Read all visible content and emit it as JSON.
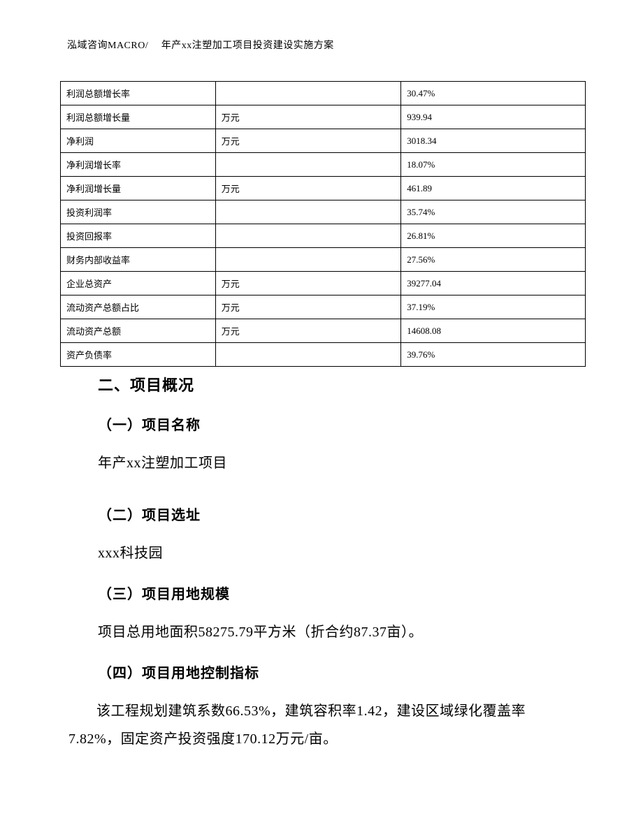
{
  "header": {
    "text": "泓域咨询MACRO/　 年产xx注塑加工项目投资建设实施方案"
  },
  "table": {
    "rows": [
      {
        "c1": "利润总额增长率",
        "c2": "",
        "c3": "30.47%"
      },
      {
        "c1": "利润总额增长量",
        "c2": "万元",
        "c3": "939.94"
      },
      {
        "c1": "净利润",
        "c2": "万元",
        "c3": "3018.34"
      },
      {
        "c1": "净利润增长率",
        "c2": "",
        "c3": "18.07%"
      },
      {
        "c1": "净利润增长量",
        "c2": "万元",
        "c3": "461.89"
      },
      {
        "c1": "投资利润率",
        "c2": "",
        "c3": "35.74%"
      },
      {
        "c1": "投资回报率",
        "c2": "",
        "c3": "26.81%"
      },
      {
        "c1": "财务内部收益率",
        "c2": "",
        "c3": "27.56%"
      },
      {
        "c1": "企业总资产",
        "c2": "万元",
        "c3": "39277.04"
      },
      {
        "c1": "流动资产总额占比",
        "c2": "万元",
        "c3": "37.19%"
      },
      {
        "c1": "流动资产总额",
        "c2": "万元",
        "c3": "14608.08"
      },
      {
        "c1": "资产负债率",
        "c2": "",
        "c3": "39.76%"
      }
    ]
  },
  "section2": {
    "title": "二、项目概况",
    "sub1": {
      "heading": "（一）项目名称",
      "text": "年产xx注塑加工项目"
    },
    "sub2": {
      "heading": "（二）项目选址",
      "text": "xxx科技园"
    },
    "sub3": {
      "heading": "（三）项目用地规模",
      "text": "项目总用地面积58275.79平方米（折合约87.37亩）。"
    },
    "sub4": {
      "heading": "（四）项目用地控制指标",
      "text": "该工程规划建筑系数66.53%，建筑容积率1.42，建设区域绿化覆盖率7.82%，固定资产投资强度170.12万元/亩。"
    }
  }
}
